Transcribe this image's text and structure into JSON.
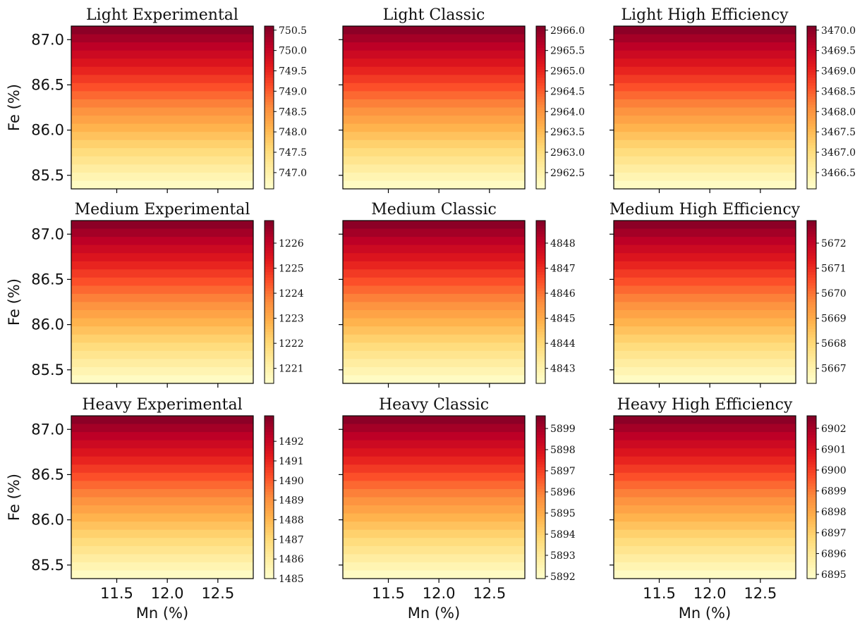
{
  "chart_data": {
    "type": "heatmap",
    "layout": "3x3 grid of panels, each with its own colorbar on the right",
    "colormap": "YlOrRd",
    "x_range": [
      11.05,
      12.85
    ],
    "y_range": [
      85.35,
      87.15
    ],
    "x_ticks": [
      "11.5",
      "12.0",
      "12.5"
    ],
    "x_tick_values": [
      11.5,
      12.0,
      12.5
    ],
    "y_ticks": [
      "87.0",
      "86.5",
      "86.0",
      "85.5"
    ],
    "y_tick_values": [
      87.0,
      86.5,
      86.0,
      85.5
    ],
    "xlabel": "Mn (%)",
    "ylabel": "Fe (%)",
    "grid": false,
    "panels": [
      {
        "title": "Light Experimental",
        "vmin": 746.6,
        "vmax": 750.6,
        "cbar_ticks": [
          "747.0",
          "747.5",
          "748.0",
          "748.5",
          "749.0",
          "749.5",
          "750.0",
          "750.5"
        ],
        "cbar_tick_values": [
          747.0,
          747.5,
          748.0,
          748.5,
          749.0,
          749.5,
          750.0,
          750.5
        ]
      },
      {
        "title": "Light Classic",
        "vmin": 2962.1,
        "vmax": 2966.1,
        "cbar_ticks": [
          "2962.5",
          "2963.0",
          "2963.5",
          "2964.0",
          "2964.5",
          "2965.0",
          "2965.5",
          "2966.0"
        ],
        "cbar_tick_values": [
          2962.5,
          2963.0,
          2963.5,
          2964.0,
          2964.5,
          2965.0,
          2965.5,
          2966.0
        ]
      },
      {
        "title": "Light High Efficiency",
        "vmin": 3466.1,
        "vmax": 3470.1,
        "cbar_ticks": [
          "3466.5",
          "3467.0",
          "3467.5",
          "3468.0",
          "3468.5",
          "3469.0",
          "3469.5",
          "3470.0"
        ],
        "cbar_tick_values": [
          3466.5,
          3467.0,
          3467.5,
          3468.0,
          3468.5,
          3469.0,
          3469.5,
          3470.0
        ]
      },
      {
        "title": "Medium Experimental",
        "vmin": 1220.4,
        "vmax": 1226.9,
        "cbar_ticks": [
          "1221",
          "1222",
          "1223",
          "1224",
          "1225",
          "1226"
        ],
        "cbar_tick_values": [
          1221,
          1222,
          1223,
          1224,
          1225,
          1226
        ]
      },
      {
        "title": "Medium Classic",
        "vmin": 4842.4,
        "vmax": 4848.9,
        "cbar_ticks": [
          "4843",
          "4844",
          "4845",
          "4846",
          "4847",
          "4848"
        ],
        "cbar_tick_values": [
          4843,
          4844,
          4845,
          4846,
          4847,
          4848
        ]
      },
      {
        "title": "Medium High Efficiency",
        "vmin": 5666.4,
        "vmax": 5672.9,
        "cbar_ticks": [
          "5667",
          "5668",
          "5669",
          "5670",
          "5671",
          "5672"
        ],
        "cbar_tick_values": [
          5667,
          5668,
          5669,
          5670,
          5671,
          5672
        ]
      },
      {
        "title": "Heavy Experimental",
        "vmin": 1485.0,
        "vmax": 1493.3,
        "cbar_ticks": [
          "1485",
          "1486",
          "1487",
          "1488",
          "1489",
          "1490",
          "1491",
          "1492"
        ],
        "cbar_tick_values": [
          1485,
          1486,
          1487,
          1488,
          1489,
          1490,
          1491,
          1492
        ]
      },
      {
        "title": "Heavy Classic",
        "vmin": 5891.9,
        "vmax": 5899.6,
        "cbar_ticks": [
          "5892",
          "5893",
          "5894",
          "5895",
          "5896",
          "5897",
          "5898",
          "5899"
        ],
        "cbar_tick_values": [
          5892,
          5893,
          5894,
          5895,
          5896,
          5897,
          5898,
          5899
        ]
      },
      {
        "title": "Heavy High Efficiency",
        "vmin": 6894.8,
        "vmax": 6902.6,
        "cbar_ticks": [
          "6895",
          "6896",
          "6897",
          "6898",
          "6899",
          "6900",
          "6901",
          "6902"
        ],
        "cbar_tick_values": [
          6895,
          6896,
          6897,
          6898,
          6899,
          6900,
          6901,
          6902
        ]
      }
    ],
    "pattern": "value decreases with Fe (dark red at Fe≈87.2, pale yellow at Fe≈85.4); nearly constant along Mn"
  }
}
